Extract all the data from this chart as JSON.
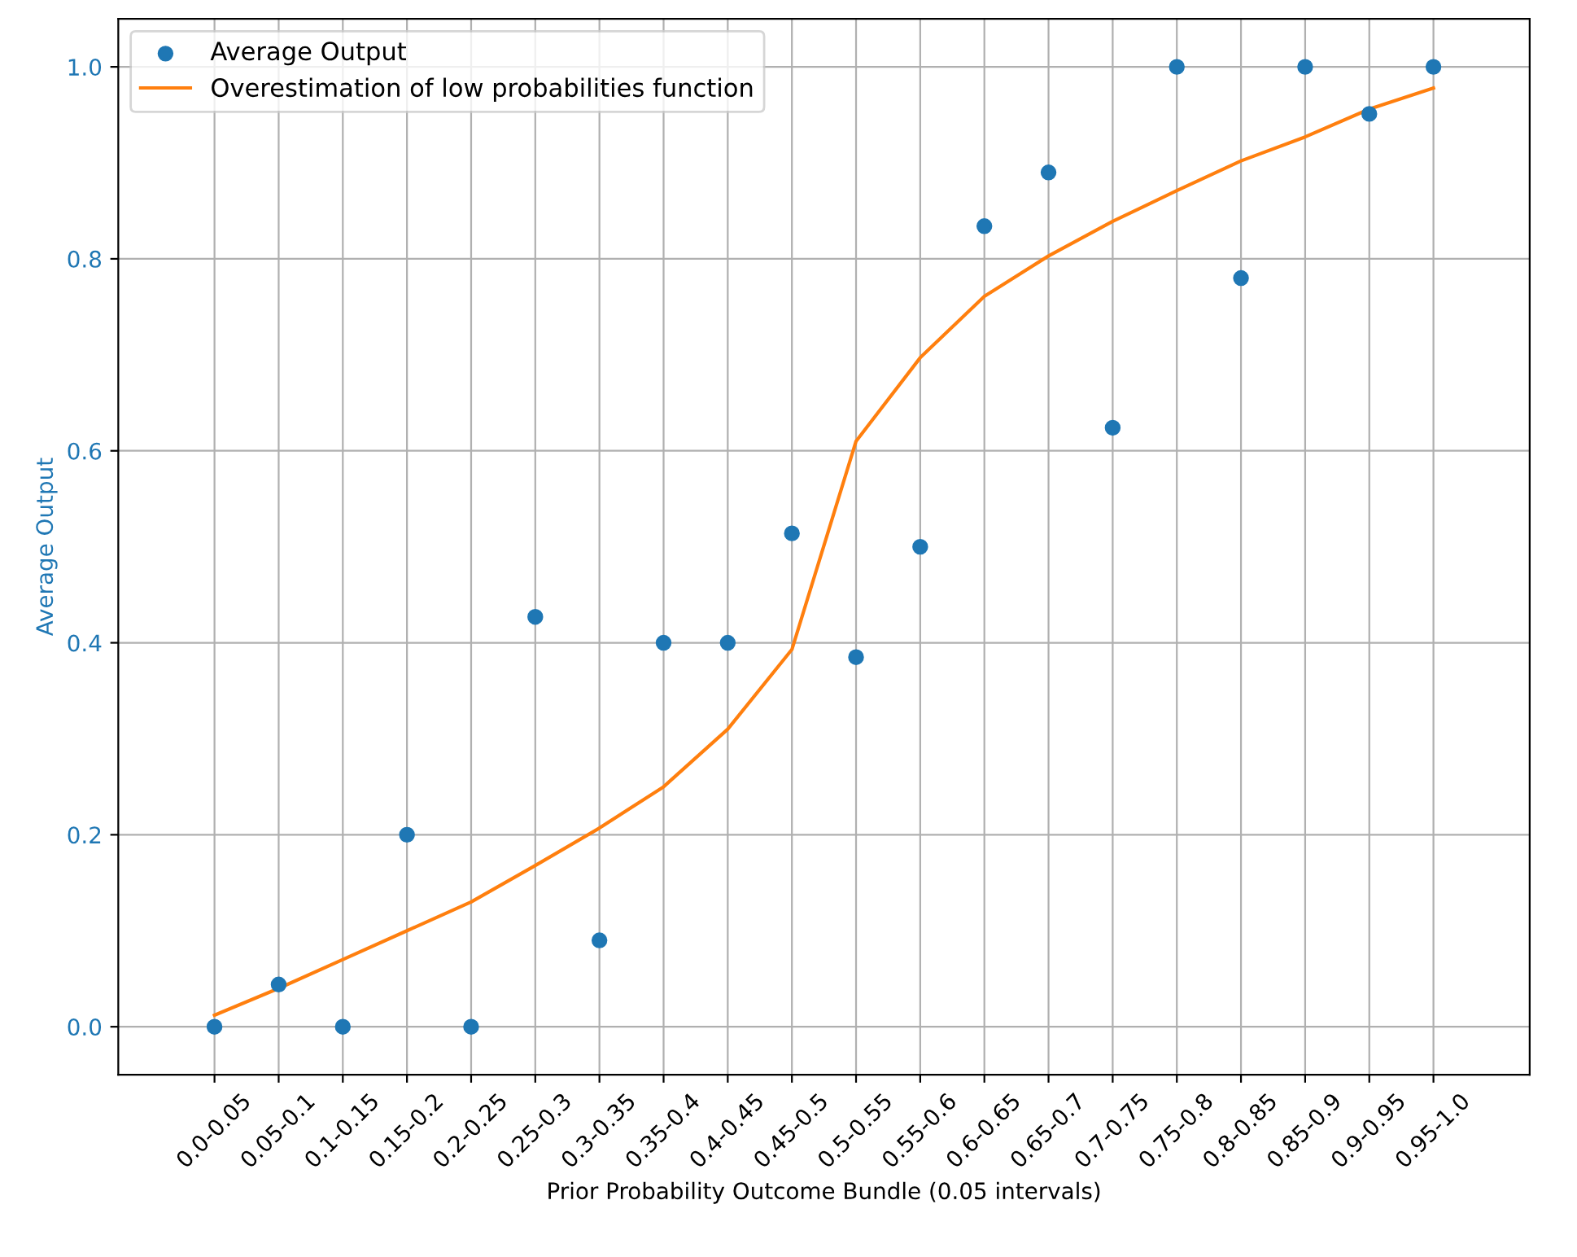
{
  "chart_data": {
    "type": "scatter",
    "xlabel": "Prior Probability Outcome Bundle (0.05 intervals)",
    "ylabel": "Average Output",
    "categories": [
      "0.0-0.05",
      "0.05-0.1",
      "0.1-0.15",
      "0.15-0.2",
      "0.2-0.25",
      "0.25-0.3",
      "0.3-0.35",
      "0.35-0.4",
      "0.4-0.45",
      "0.45-0.5",
      "0.5-0.55",
      "0.55-0.6",
      "0.6-0.65",
      "0.65-0.7",
      "0.7-0.75",
      "0.75-0.8",
      "0.8-0.85",
      "0.85-0.9",
      "0.9-0.95",
      "0.95-1.0"
    ],
    "series": [
      {
        "name": "Average Output",
        "marker": "circle",
        "color": "#1f77b4",
        "values": [
          0,
          0.044,
          0,
          0.2,
          0,
          0.427,
          0.09,
          0.4,
          0.4,
          0.514,
          0.385,
          0.5,
          0.834,
          0.89,
          0.624,
          1.0,
          0.78,
          1.0,
          0.951,
          1.0
        ]
      },
      {
        "name": "Overestimation of low probabilities function",
        "type": "line",
        "color": "#ff7f0e",
        "values": [
          0.012,
          0.04,
          0.07,
          0.1,
          0.13,
          0.168,
          0.207,
          0.25,
          0.31,
          0.393,
          0.61,
          0.697,
          0.761,
          0.803,
          0.839,
          0.871,
          0.902,
          0.927,
          0.956,
          0.978
        ]
      }
    ],
    "ylim": [
      -0.05,
      1.05
    ],
    "yticks": [
      {
        "value": 0,
        "label": "0.0"
      },
      0.2,
      0.4,
      0.6,
      0.8,
      {
        "value": 1,
        "label": "1.0"
      }
    ],
    "grid": true,
    "legend": "top left"
  }
}
